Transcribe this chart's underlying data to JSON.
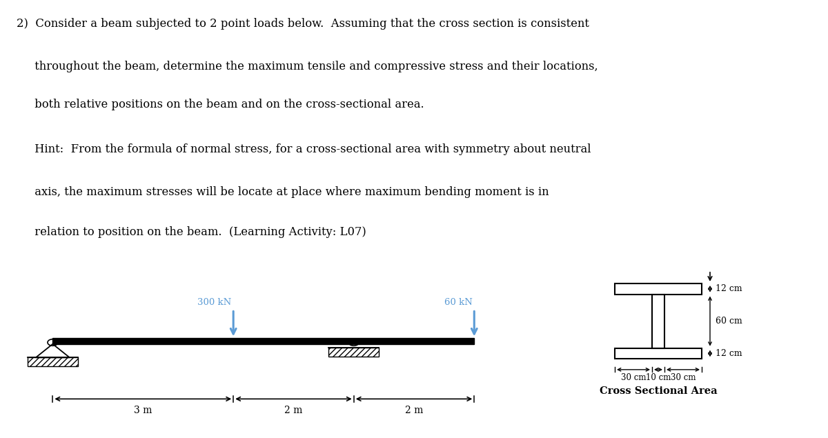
{
  "lines": [
    "2)  Consider a beam subjected to 2 point loads below.  Assuming that the cross section is consistent",
    "     throughout the beam, determine the maximum tensile and compressive stress and their locations,",
    "     both relative positions on the beam and on the cross-sectional area.",
    "     Hint:  From the formula of normal stress, for a cross-sectional area with symmetry about neutral",
    "     axis, the maximum stresses will be locate at place where maximum bending moment is in",
    "     relation to position on the beam.  (Learning Activity: L07)"
  ],
  "beam_color": "#000000",
  "load_color": "#5b9bd5",
  "load1_label": "300 kN",
  "load2_label": "60 kN",
  "dim1_label": "3 m",
  "dim2_label": "2 m",
  "dim3_label": "2 m",
  "cs_label": "Cross Sectional Area",
  "cs_dim_top": "12 cm",
  "cs_dim_web": "60 cm",
  "cs_dim_bot": "12 cm",
  "cs_dim_w1": "30 cm",
  "cs_dim_w2": "10 cm",
  "cs_dim_w3": "30 cm"
}
